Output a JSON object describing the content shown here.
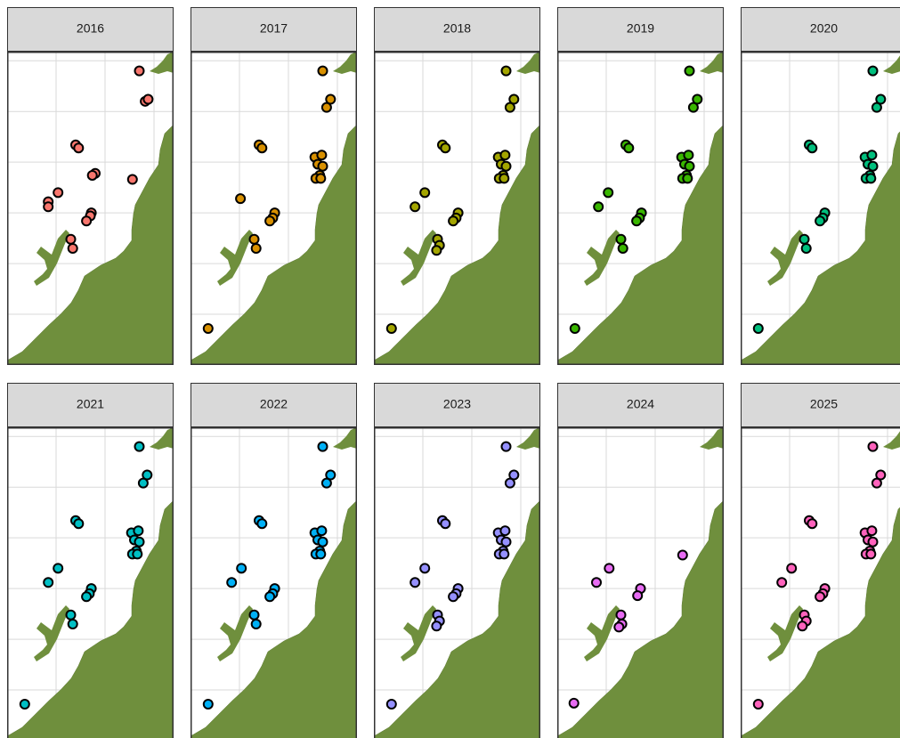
{
  "chart_data": [
    {
      "type": "scatter",
      "title": "2016",
      "color": "#F8766D",
      "xlim": [
        138,
        139.7
      ],
      "ylim": [
        37.0,
        40.09
      ],
      "xticks": [
        138.5,
        139,
        139.5
      ],
      "yticks": [
        37.5,
        38,
        38.5,
        39,
        39.5,
        40
      ],
      "grid": true,
      "x": [
        139.35,
        139.41,
        139.44,
        138.7,
        138.73,
        138.9,
        138.87,
        139.28,
        138.52,
        138.42,
        138.42,
        138.86,
        138.85,
        138.81,
        138.65,
        138.67
      ],
      "y": [
        39.9,
        39.6,
        39.62,
        39.17,
        39.14,
        38.89,
        38.87,
        38.83,
        38.7,
        38.61,
        38.56,
        38.5,
        38.47,
        38.42,
        38.24,
        38.15
      ]
    },
    {
      "type": "scatter",
      "title": "2017",
      "color": "#D89000",
      "xlim": [
        138,
        139.7
      ],
      "ylim": [
        37.0,
        40.09
      ],
      "xticks": [
        138.5,
        139,
        139.5
      ],
      "yticks": [
        37.5,
        38,
        38.5,
        39,
        39.5,
        40
      ],
      "grid": true,
      "x": [
        139.35,
        139.43,
        139.39,
        138.7,
        138.73,
        139.27,
        139.34,
        139.3,
        139.35,
        139.32,
        139.28,
        139.33,
        138.51,
        138.86,
        138.84,
        138.81,
        138.65,
        138.67,
        138.18
      ],
      "y": [
        39.9,
        39.62,
        39.54,
        39.17,
        39.14,
        39.05,
        39.07,
        38.98,
        38.96,
        38.87,
        38.84,
        38.84,
        38.64,
        38.5,
        38.45,
        38.42,
        38.24,
        38.15,
        37.36
      ]
    },
    {
      "type": "scatter",
      "title": "2018",
      "color": "#A3A500",
      "xlim": [
        138,
        139.7
      ],
      "ylim": [
        37.0,
        40.09
      ],
      "xticks": [
        138.5,
        139,
        139.5
      ],
      "yticks": [
        37.5,
        38,
        38.5,
        39,
        39.5,
        40
      ],
      "grid": true,
      "x": [
        139.35,
        139.43,
        139.39,
        138.7,
        138.73,
        139.27,
        139.34,
        139.3,
        139.35,
        139.32,
        139.28,
        139.33,
        138.52,
        138.42,
        138.86,
        138.84,
        138.81,
        138.65,
        138.67,
        138.64,
        138.18
      ],
      "y": [
        39.9,
        39.62,
        39.54,
        39.17,
        39.14,
        39.05,
        39.07,
        38.98,
        38.96,
        38.87,
        38.84,
        38.84,
        38.7,
        38.56,
        38.5,
        38.45,
        38.42,
        38.24,
        38.18,
        38.13,
        37.36
      ]
    },
    {
      "type": "scatter",
      "title": "2019",
      "color": "#39B600",
      "xlim": [
        138,
        139.7
      ],
      "ylim": [
        37.0,
        40.09
      ],
      "xticks": [
        138.5,
        139,
        139.5
      ],
      "yticks": [
        37.5,
        38,
        38.5,
        39,
        39.5,
        40
      ],
      "grid": true,
      "x": [
        139.35,
        139.43,
        139.39,
        138.7,
        138.73,
        139.27,
        139.34,
        139.3,
        139.35,
        139.32,
        139.28,
        139.33,
        138.52,
        138.42,
        138.86,
        138.84,
        138.81,
        138.65,
        138.67,
        138.18
      ],
      "y": [
        39.9,
        39.62,
        39.54,
        39.17,
        39.14,
        39.05,
        39.07,
        38.98,
        38.96,
        38.87,
        38.84,
        38.84,
        38.7,
        38.56,
        38.5,
        38.45,
        38.42,
        38.24,
        38.15,
        37.36
      ]
    },
    {
      "type": "scatter",
      "title": "2020",
      "color": "#00BF7D",
      "xlim": [
        138,
        139.7
      ],
      "ylim": [
        37.0,
        40.09
      ],
      "xticks": [
        138.5,
        139,
        139.5
      ],
      "yticks": [
        37.5,
        38,
        38.5,
        39,
        39.5,
        40
      ],
      "grid": true,
      "x": [
        139.35,
        139.43,
        139.39,
        138.7,
        138.73,
        139.27,
        139.34,
        139.3,
        139.35,
        139.32,
        139.28,
        139.33,
        138.86,
        138.84,
        138.81,
        138.65,
        138.67,
        138.18
      ],
      "y": [
        39.9,
        39.62,
        39.54,
        39.17,
        39.14,
        39.05,
        39.07,
        38.98,
        38.96,
        38.87,
        38.84,
        38.84,
        38.5,
        38.45,
        38.42,
        38.24,
        38.15,
        37.36
      ]
    },
    {
      "type": "scatter",
      "title": "2021",
      "color": "#00BFC4",
      "xlim": [
        138,
        139.7
      ],
      "ylim": [
        37.0,
        40.09
      ],
      "xticks": [
        138.5,
        139,
        139.5
      ],
      "yticks": [
        37.5,
        38,
        38.5,
        39,
        39.5,
        40
      ],
      "grid": true,
      "x": [
        139.35,
        139.43,
        139.39,
        138.7,
        138.73,
        139.27,
        139.34,
        139.3,
        139.35,
        139.32,
        139.28,
        139.33,
        138.52,
        138.42,
        138.86,
        138.84,
        138.81,
        138.65,
        138.67,
        138.18
      ],
      "y": [
        39.9,
        39.62,
        39.54,
        39.17,
        39.14,
        39.05,
        39.07,
        38.98,
        38.96,
        38.87,
        38.84,
        38.84,
        38.7,
        38.56,
        38.5,
        38.45,
        38.42,
        38.24,
        38.15,
        37.36
      ]
    },
    {
      "type": "scatter",
      "title": "2022",
      "color": "#00B0F6",
      "xlim": [
        138,
        139.7
      ],
      "ylim": [
        37.0,
        40.09
      ],
      "xticks": [
        138.5,
        139,
        139.5
      ],
      "yticks": [
        37.5,
        38,
        38.5,
        39,
        39.5,
        40
      ],
      "grid": true,
      "x": [
        139.35,
        139.43,
        139.39,
        138.7,
        138.73,
        139.27,
        139.34,
        139.3,
        139.35,
        139.32,
        139.28,
        139.33,
        138.52,
        138.42,
        138.86,
        138.84,
        138.81,
        138.65,
        138.67,
        138.18
      ],
      "y": [
        39.9,
        39.62,
        39.54,
        39.17,
        39.14,
        39.05,
        39.07,
        38.98,
        38.96,
        38.87,
        38.84,
        38.84,
        38.7,
        38.56,
        38.5,
        38.45,
        38.42,
        38.24,
        38.15,
        37.36
      ]
    },
    {
      "type": "scatter",
      "title": "2023",
      "color": "#9590FF",
      "xlim": [
        138,
        139.7
      ],
      "ylim": [
        37.0,
        40.09
      ],
      "xticks": [
        138.5,
        139,
        139.5
      ],
      "yticks": [
        37.5,
        38,
        38.5,
        39,
        39.5,
        40
      ],
      "grid": true,
      "x": [
        139.35,
        139.43,
        139.39,
        138.7,
        138.73,
        139.27,
        139.34,
        139.3,
        139.35,
        139.32,
        139.28,
        139.33,
        138.52,
        138.42,
        138.86,
        138.84,
        138.81,
        138.65,
        138.67,
        138.64,
        138.18
      ],
      "y": [
        39.9,
        39.62,
        39.54,
        39.17,
        39.14,
        39.05,
        39.07,
        38.98,
        38.96,
        38.87,
        38.84,
        38.84,
        38.7,
        38.56,
        38.5,
        38.45,
        38.42,
        38.24,
        38.18,
        38.13,
        37.36
      ]
    },
    {
      "type": "scatter",
      "title": "2024",
      "color": "#E76BF3",
      "xlim": [
        138,
        139.7
      ],
      "ylim": [
        37.0,
        40.09
      ],
      "xticks": [
        138.5,
        139,
        139.5
      ],
      "yticks": [
        37.5,
        38,
        38.5,
        39,
        39.5,
        40
      ],
      "grid": true,
      "x": [
        138.53,
        138.4,
        138.85,
        138.82,
        138.65,
        138.66,
        138.63,
        139.28,
        138.17
      ],
      "y": [
        38.7,
        38.56,
        38.5,
        38.43,
        38.24,
        38.15,
        38.12,
        38.83,
        37.37
      ]
    },
    {
      "type": "scatter",
      "title": "2025",
      "color": "#FF62BC",
      "xlim": [
        138,
        139.7
      ],
      "ylim": [
        37.0,
        40.09
      ],
      "xticks": [
        138.5,
        139,
        139.5
      ],
      "yticks": [
        37.5,
        38,
        38.5,
        39,
        39.5,
        40
      ],
      "grid": true,
      "x": [
        139.35,
        139.43,
        139.39,
        138.7,
        138.73,
        139.27,
        139.34,
        139.3,
        139.35,
        139.32,
        139.28,
        139.33,
        138.52,
        138.42,
        138.86,
        138.84,
        138.81,
        138.65,
        138.67,
        138.63,
        138.18
      ],
      "y": [
        39.9,
        39.62,
        39.54,
        39.17,
        39.14,
        39.05,
        39.07,
        38.98,
        38.96,
        38.87,
        38.84,
        38.84,
        38.7,
        38.56,
        38.5,
        38.45,
        38.42,
        38.24,
        38.18,
        38.13,
        37.36
      ]
    }
  ]
}
